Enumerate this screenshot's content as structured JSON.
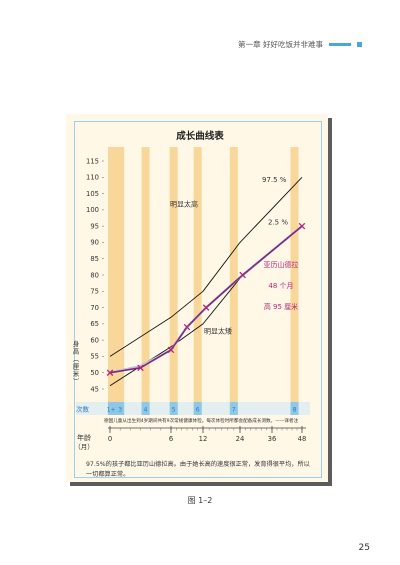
{
  "running_head": {
    "text": "第一章   好好吃饭并非难事"
  },
  "figure": {
    "title": "成长曲线表",
    "note": "德国儿童从出生到4岁期间共有9次常规健康体检。每次体检时所都会配备成长测数。——译者注",
    "caption": "97.5%的孩子都比亚历山德拉高。由于她长高的速度很正常，发育得很平均，所以一切都算正常。",
    "label": "图 1–2"
  },
  "page_number": "25",
  "chart_data": {
    "type": "line",
    "title": "成长曲线表",
    "ylabel": "身高（厘米）",
    "xlabel": "年龄（月）",
    "ylim": [
      45,
      115
    ],
    "y_ticks": [
      45,
      50,
      55,
      60,
      65,
      70,
      75,
      80,
      85,
      90,
      95,
      100,
      105,
      110,
      115
    ],
    "x_ticks": [
      {
        "value": 0,
        "label": "0"
      },
      {
        "value": 6,
        "label": "6"
      },
      {
        "value": 12,
        "label": "12"
      },
      {
        "value": 24,
        "label": "24"
      },
      {
        "value": 36,
        "label": "36"
      },
      {
        "value": 48,
        "label": "48"
      }
    ],
    "checkup_row_label": "次数",
    "checkups": [
      {
        "label": "1+2",
        "month": 0
      },
      {
        "label": "3",
        "month": 1
      },
      {
        "label": "4",
        "month": 3.5
      },
      {
        "label": "5",
        "month": 6.5
      },
      {
        "label": "6",
        "month": 11
      },
      {
        "label": "7",
        "month": 22
      },
      {
        "label": "8",
        "month": 45
      }
    ],
    "series": [
      {
        "name": "97.5 %",
        "color": "#111111",
        "points": [
          [
            0,
            55
          ],
          [
            6,
            67
          ],
          [
            12,
            75
          ],
          [
            24,
            90
          ],
          [
            48,
            110
          ]
        ]
      },
      {
        "name": "2.5 %",
        "color": "#111111",
        "points": [
          [
            0,
            46
          ],
          [
            6,
            58
          ],
          [
            12,
            65
          ],
          [
            24,
            79
          ],
          [
            48,
            95
          ]
        ]
      },
      {
        "name": "",
        "color": "#c0c0d8",
        "points": [
          [
            0,
            50
          ],
          [
            3,
            52
          ],
          [
            6,
            57
          ],
          [
            9,
            64
          ],
          [
            13,
            70
          ],
          [
            25,
            80
          ],
          [
            48,
            95
          ]
        ]
      },
      {
        "name": "亚历山德拉",
        "color": "#7a2a82",
        "points": [
          [
            0,
            50
          ],
          [
            3,
            51.5
          ],
          [
            6,
            57
          ],
          [
            9,
            64
          ],
          [
            13,
            70
          ],
          [
            25,
            80
          ],
          [
            48,
            95
          ]
        ]
      }
    ],
    "annotations": [
      {
        "text": "明显太高"
      },
      {
        "text": "明显太矮"
      },
      {
        "text": "亚历山德拉",
        "color": "#b0257a"
      },
      {
        "text": "48 个月",
        "color": "#b0257a"
      },
      {
        "text": "高 95 厘米",
        "color": "#b0257a"
      }
    ]
  }
}
